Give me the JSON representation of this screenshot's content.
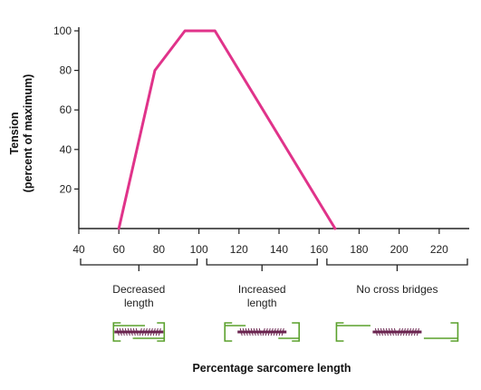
{
  "chart_data": {
    "type": "line",
    "title": "",
    "xlabel": "Percentage sarcomere length",
    "ylabel": "Tension",
    "ylabel_sub": "(percent of maximum)",
    "xlim": [
      40,
      235
    ],
    "ylim": [
      0,
      100
    ],
    "x_ticks": [
      40,
      60,
      80,
      100,
      120,
      140,
      160,
      180,
      200,
      220
    ],
    "y_ticks": [
      20,
      40,
      60,
      80,
      100
    ],
    "grid": false,
    "series": [
      {
        "color": "#e0338a",
        "x": [
          60,
          78,
          93,
          108,
          168
        ],
        "y": [
          0,
          80,
          100,
          100,
          0
        ]
      }
    ],
    "regions": [
      {
        "label_lines": [
          "Decreased",
          "length"
        ],
        "from": 40,
        "to": 100,
        "icon": "overlapped-sarcomere-icon"
      },
      {
        "label_lines": [
          "Increased",
          "length"
        ],
        "from": 103,
        "to": 160,
        "icon": "optimal-sarcomere-icon"
      },
      {
        "label_lines": [
          "No cross bridges"
        ],
        "from": 163,
        "to": 235,
        "icon": "stretched-sarcomere-icon"
      }
    ],
    "colors": {
      "line": "#e0338a",
      "axis": "#222222",
      "actin": "#5aa02c",
      "myosin": "#6b2550"
    }
  }
}
